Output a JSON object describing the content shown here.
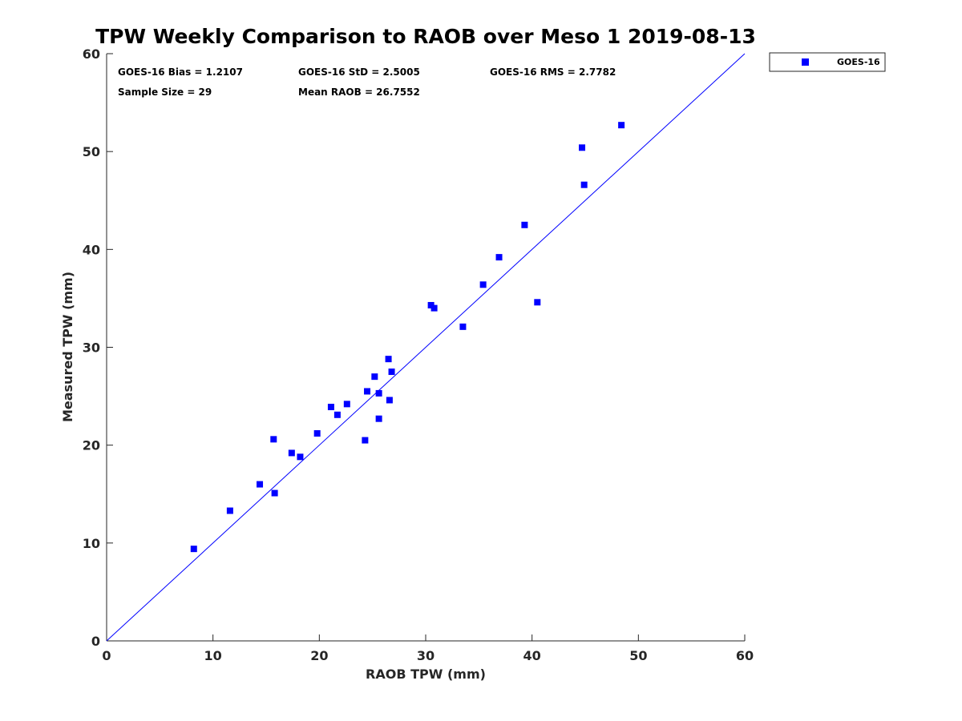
{
  "chart_data": {
    "type": "scatter",
    "title": "TPW Weekly Comparison to RAOB over Meso 1 2019-08-13",
    "xlabel": "RAOB TPW (mm)",
    "ylabel": "Measured TPW (mm)",
    "xlim": [
      0,
      60
    ],
    "ylim": [
      0,
      60
    ],
    "xticks": [
      0,
      10,
      20,
      30,
      40,
      50,
      60
    ],
    "yticks": [
      0,
      10,
      20,
      30,
      40,
      50,
      60
    ],
    "grid": false,
    "legend_position": "outside-top-right",
    "reference_line": {
      "type": "one-to-one",
      "color": "#0000ff"
    },
    "series": [
      {
        "name": "GOES-16",
        "marker": "square",
        "color": "#0000ff",
        "points": [
          [
            8.2,
            9.4
          ],
          [
            11.6,
            13.3
          ],
          [
            14.4,
            16.0
          ],
          [
            15.7,
            20.6
          ],
          [
            15.8,
            15.1
          ],
          [
            17.4,
            19.2
          ],
          [
            18.2,
            18.8
          ],
          [
            19.8,
            21.2
          ],
          [
            21.1,
            23.9
          ],
          [
            21.7,
            23.1
          ],
          [
            22.6,
            24.2
          ],
          [
            24.3,
            20.5
          ],
          [
            24.5,
            25.5
          ],
          [
            25.2,
            27.0
          ],
          [
            25.6,
            22.7
          ],
          [
            25.6,
            25.3
          ],
          [
            26.5,
            28.8
          ],
          [
            26.6,
            24.6
          ],
          [
            26.8,
            27.5
          ],
          [
            30.5,
            34.3
          ],
          [
            30.8,
            34.0
          ],
          [
            33.5,
            32.1
          ],
          [
            35.4,
            36.4
          ],
          [
            36.9,
            39.2
          ],
          [
            39.3,
            42.5
          ],
          [
            40.5,
            34.6
          ],
          [
            44.7,
            50.4
          ],
          [
            44.9,
            46.6
          ],
          [
            48.4,
            52.7
          ]
        ]
      }
    ],
    "stats": {
      "bias": "GOES-16 Bias = 1.2107",
      "std": "GOES-16 StD = 2.5005",
      "rms": "GOES-16 RMS = 2.7782",
      "sample_size": "Sample Size = 29",
      "mean_raob": "Mean RAOB = 26.7552"
    }
  }
}
